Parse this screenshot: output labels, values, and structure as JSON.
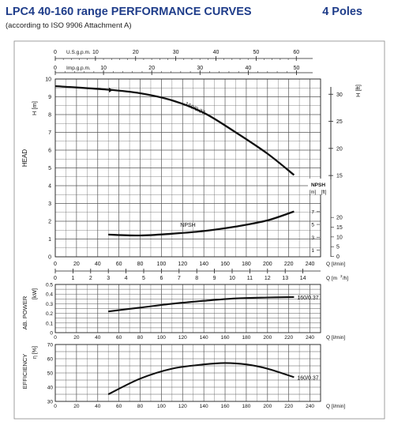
{
  "header": {
    "title": "LPC4 40-160 range PERFORMANCE CURVES",
    "poles": "4 Poles",
    "subtitle": "(according to ISO 9906 Attachment A)"
  },
  "colors": {
    "accent": "#1f3d8a",
    "grid": "#555555",
    "curve": "#111111"
  },
  "chart_data": [
    {
      "type": "line",
      "title": "",
      "top_axes": [
        {
          "label": "U.S.g.p.m.",
          "range": [
            0,
            60
          ],
          "ticks": [
            0,
            10,
            20,
            30,
            40,
            50,
            60
          ],
          "tick_labels": [
            "0",
            "10",
            "20",
            "30",
            "40",
            "50",
            "60"
          ]
        },
        {
          "label": "Imp.g.p.m.",
          "range": [
            0,
            50
          ],
          "ticks": [
            0,
            10,
            20,
            30,
            40,
            50
          ],
          "tick_labels": [
            "0",
            "10",
            "20",
            "30",
            "40",
            "50"
          ]
        }
      ],
      "xlabel": "Q [l/min]",
      "xlim": [
        0,
        250
      ],
      "x_ticks": [
        0,
        20,
        40,
        60,
        80,
        100,
        120,
        140,
        160,
        180,
        200,
        220,
        240
      ],
      "x_tick_labels": [
        "0",
        "20",
        "40",
        "60",
        "80",
        "100",
        "120",
        "140",
        "160",
        "180",
        "200",
        "220",
        "240"
      ],
      "x2label": "Q [m3/h]",
      "x2_ticks": [
        0,
        1,
        2,
        3,
        4,
        5,
        6,
        7,
        8,
        9,
        10,
        11,
        12,
        13,
        14
      ],
      "x2_tick_labels": [
        "0",
        "1",
        "2",
        "3",
        "4",
        "5",
        "6",
        "7",
        "8",
        "9",
        "10",
        "11",
        "12",
        "13",
        "14"
      ],
      "ylabel": "HEAD",
      "ylabel_unit": "H [m]",
      "ylim": [
        0,
        10
      ],
      "y_ticks": [
        0,
        1,
        2,
        3,
        4,
        5,
        6,
        7,
        8,
        9,
        10
      ],
      "y_tick_labels": [
        "0",
        "1",
        "2",
        "3",
        "4",
        "5",
        "6",
        "7",
        "8",
        "9",
        "10"
      ],
      "y2label": "H [ft]",
      "y2_ticks": [
        15,
        20,
        25,
        30
      ],
      "y2_tick_labels": [
        "15",
        "20",
        "25",
        "30"
      ],
      "npsh_axis": {
        "label_m": "[m]",
        "label_ft": "[ft]",
        "m_ticks": [
          1,
          3,
          5,
          7
        ],
        "m_tick_labels": [
          "1",
          "3",
          "5",
          "7"
        ],
        "ft_ticks": [
          0,
          5,
          10,
          15,
          20
        ],
        "ft_tick_labels": [
          "0",
          "5",
          "10",
          "15",
          "20"
        ]
      },
      "series": [
        {
          "name": "160/0.37",
          "x": [
            0,
            50,
            80,
            110,
            140,
            170,
            200,
            225
          ],
          "y": [
            9.6,
            9.4,
            9.2,
            8.8,
            8.1,
            7.0,
            5.8,
            4.6
          ]
        },
        {
          "name": "NPSH",
          "x": [
            50,
            80,
            110,
            140,
            170,
            200,
            225
          ],
          "y": [
            1.25,
            1.2,
            1.3,
            1.45,
            1.7,
            2.05,
            2.55
          ]
        }
      ],
      "grid": true
    },
    {
      "type": "line",
      "ylabel": "AB. POWER",
      "ylabel_unit": "[kW]",
      "ylim": [
        0,
        0.5
      ],
      "y_ticks": [
        0,
        0.1,
        0.2,
        0.3,
        0.4,
        0.5
      ],
      "y_tick_labels": [
        "0",
        "0.1",
        "0.2",
        "0.3",
        "0.4",
        "0.5"
      ],
      "xlabel": "Q [l/min]",
      "xlim": [
        0,
        250
      ],
      "x_ticks": [
        0,
        20,
        40,
        60,
        80,
        100,
        120,
        140,
        160,
        180,
        200,
        220,
        240
      ],
      "x_tick_labels": [
        "0",
        "20",
        "40",
        "60",
        "80",
        "100",
        "120",
        "140",
        "160",
        "180",
        "200",
        "220",
        "240"
      ],
      "series": [
        {
          "name": "160/0.37",
          "x": [
            50,
            80,
            110,
            140,
            170,
            200,
            225
          ],
          "y": [
            0.22,
            0.26,
            0.3,
            0.33,
            0.355,
            0.365,
            0.37
          ]
        }
      ],
      "grid": true
    },
    {
      "type": "line",
      "ylabel": "EFFICIENCY",
      "ylabel_unit": "η [%]",
      "ylim": [
        30,
        70
      ],
      "y_ticks": [
        30,
        40,
        50,
        60,
        70
      ],
      "y_tick_labels": [
        "30",
        "40",
        "50",
        "60",
        "70"
      ],
      "xlabel": "Q [l/min]",
      "xlim": [
        0,
        250
      ],
      "x_ticks": [
        0,
        20,
        40,
        60,
        80,
        100,
        120,
        140,
        160,
        180,
        200,
        220,
        240
      ],
      "x_tick_labels": [
        "0",
        "20",
        "40",
        "60",
        "80",
        "100",
        "120",
        "140",
        "160",
        "180",
        "200",
        "220",
        "240"
      ],
      "series": [
        {
          "name": "160/0.37",
          "x": [
            50,
            80,
            110,
            140,
            160,
            180,
            200,
            225
          ],
          "y": [
            35,
            46,
            53,
            56,
            57,
            56,
            53,
            47
          ]
        }
      ],
      "grid": true
    }
  ]
}
